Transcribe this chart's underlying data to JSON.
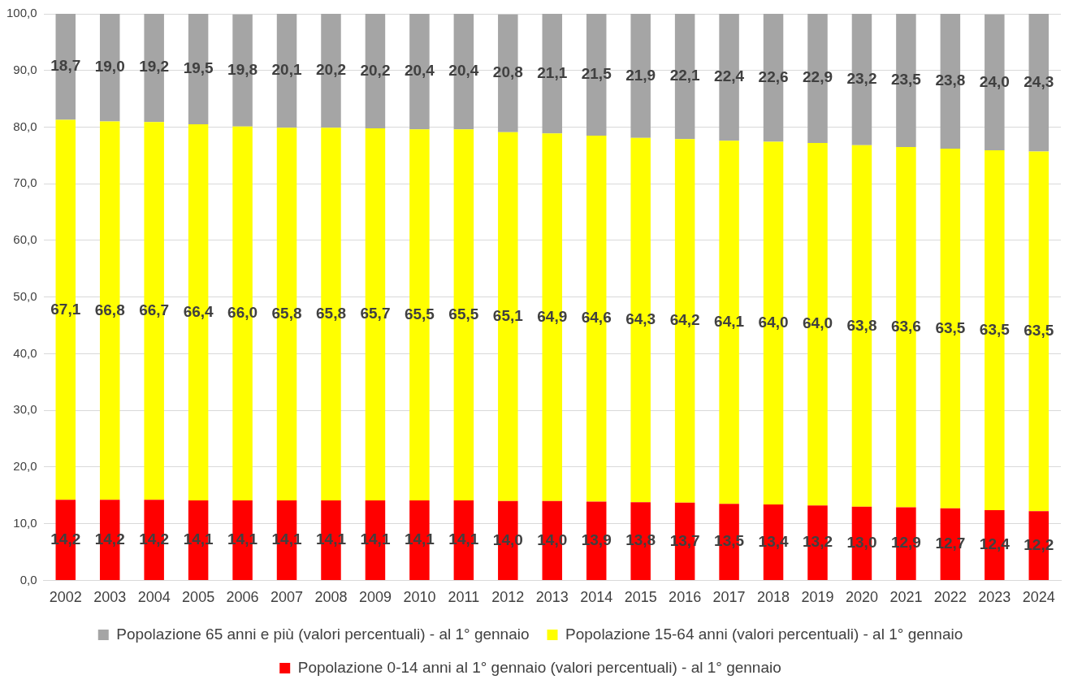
{
  "chart_data": {
    "type": "bar",
    "stacked": true,
    "categories": [
      "2002",
      "2003",
      "2004",
      "2005",
      "2006",
      "2007",
      "2008",
      "2009",
      "2010",
      "2011",
      "2012",
      "2013",
      "2014",
      "2015",
      "2016",
      "2017",
      "2018",
      "2019",
      "2020",
      "2021",
      "2022",
      "2023",
      "2024"
    ],
    "series": [
      {
        "name": "Popolazione 0-14 anni al 1° gennaio (valori percentuali) - al 1° gennaio",
        "color": "#ff0000",
        "values": [
          14.2,
          14.2,
          14.2,
          14.1,
          14.1,
          14.1,
          14.1,
          14.1,
          14.1,
          14.1,
          14.0,
          14.0,
          13.9,
          13.8,
          13.7,
          13.5,
          13.4,
          13.2,
          13.0,
          12.9,
          12.7,
          12.4,
          12.2
        ],
        "value_labels": [
          "14,2",
          "14,2",
          "14,2",
          "14,1",
          "14,1",
          "14,1",
          "14,1",
          "14,1",
          "14,1",
          "14,1",
          "14,0",
          "14,0",
          "13,9",
          "13,8",
          "13,7",
          "13,5",
          "13,4",
          "13,2",
          "13,0",
          "12,9",
          "12,7",
          "12,4",
          "12,2"
        ]
      },
      {
        "name": "Popolazione 15-64 anni (valori percentuali) - al 1° gennaio",
        "color": "#ffff00",
        "values": [
          67.1,
          66.8,
          66.7,
          66.4,
          66.0,
          65.8,
          65.8,
          65.7,
          65.5,
          65.5,
          65.1,
          64.9,
          64.6,
          64.3,
          64.2,
          64.1,
          64.0,
          64.0,
          63.8,
          63.6,
          63.5,
          63.5,
          63.5
        ],
        "value_labels": [
          "67,1",
          "66,8",
          "66,7",
          "66,4",
          "66,0",
          "65,8",
          "65,8",
          "65,7",
          "65,5",
          "65,5",
          "65,1",
          "64,9",
          "64,6",
          "64,3",
          "64,2",
          "64,1",
          "64,0",
          "64,0",
          "63,8",
          "63,6",
          "63,5",
          "63,5",
          "63,5"
        ]
      },
      {
        "name": "Popolazione 65 anni e più (valori percentuali) - al 1° gennaio",
        "color": "#a5a5a5",
        "values": [
          18.7,
          19.0,
          19.2,
          19.5,
          19.8,
          20.1,
          20.2,
          20.2,
          20.4,
          20.4,
          20.8,
          21.1,
          21.5,
          21.9,
          22.1,
          22.4,
          22.6,
          22.9,
          23.2,
          23.5,
          23.8,
          24.0,
          24.3
        ],
        "value_labels": [
          "18,7",
          "19,0",
          "19,2",
          "19,5",
          "19,8",
          "20,1",
          "20,2",
          "20,2",
          "20,4",
          "20,4",
          "20,8",
          "21,1",
          "21,5",
          "21,9",
          "22,1",
          "22,4",
          "22,6",
          "22,9",
          "23,2",
          "23,5",
          "23,8",
          "24,0",
          "24,3"
        ]
      }
    ],
    "ylim": [
      0,
      100
    ],
    "yticks": [
      {
        "value": 0,
        "label": "0,0"
      },
      {
        "value": 10,
        "label": "10,0"
      },
      {
        "value": 20,
        "label": "20,0"
      },
      {
        "value": 30,
        "label": "30,0"
      },
      {
        "value": 40,
        "label": "40,0"
      },
      {
        "value": 50,
        "label": "50,0"
      },
      {
        "value": 60,
        "label": "60,0"
      },
      {
        "value": 70,
        "label": "70,0"
      },
      {
        "value": 80,
        "label": "80,0"
      },
      {
        "value": 90,
        "label": "90,0"
      },
      {
        "value": 100,
        "label": "100,0"
      }
    ],
    "grid": "y",
    "legend": "bottom"
  }
}
